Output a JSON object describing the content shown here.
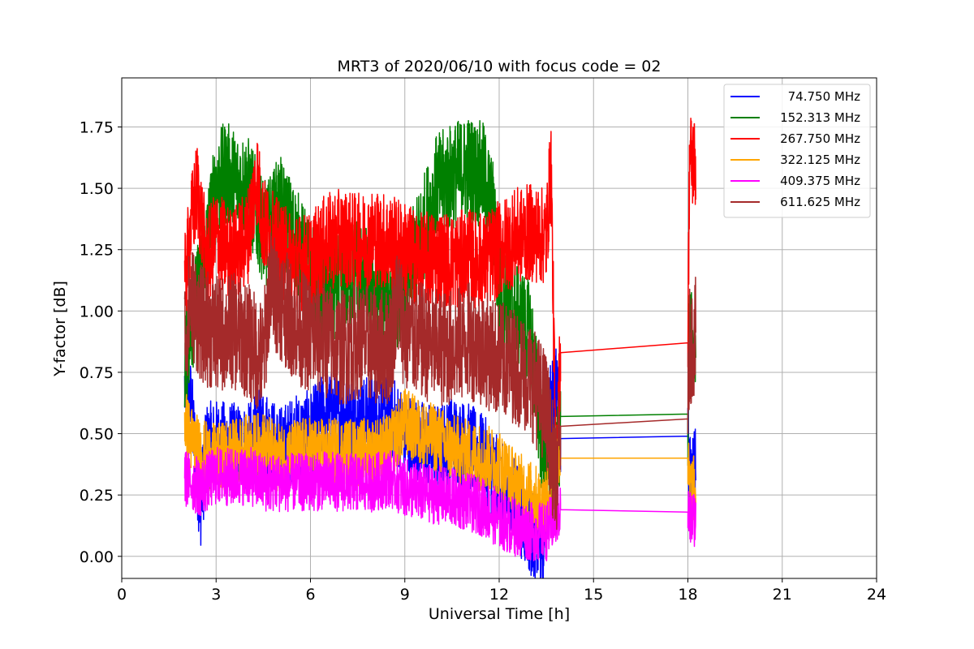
{
  "chart_data": {
    "type": "line",
    "title": "MRT3 of 2020/06/10 with focus code = 02",
    "xlabel": "Universal Time [h]",
    "ylabel": "Y-factor [dB]",
    "xlim": [
      0,
      24
    ],
    "ylim": [
      -0.09,
      1.95
    ],
    "xticks": [
      0,
      3,
      6,
      9,
      12,
      15,
      18,
      21,
      24
    ],
    "xtick_labels": [
      "0",
      "3",
      "6",
      "9",
      "12",
      "15",
      "18",
      "21",
      "24"
    ],
    "yticks": [
      0,
      0.25,
      0.5,
      0.75,
      1.0,
      1.25,
      1.5,
      1.75
    ],
    "ytick_labels": [
      "0.00",
      "0.25",
      "0.50",
      "0.75",
      "1.00",
      "1.25",
      "1.50",
      "1.75"
    ],
    "grid": true,
    "legend_position": "top-right",
    "series": [
      {
        "name": "74.750 MHz",
        "color": "#0000ff",
        "points": [
          [
            2.0,
            0.68
          ],
          [
            2.2,
            0.62
          ],
          [
            2.5,
            0.2
          ],
          [
            2.7,
            0.45
          ],
          [
            3.0,
            0.46
          ],
          [
            3.5,
            0.45
          ],
          [
            4.0,
            0.44
          ],
          [
            4.5,
            0.52
          ],
          [
            4.7,
            0.48
          ],
          [
            5.0,
            0.43
          ],
          [
            5.5,
            0.48
          ],
          [
            6.0,
            0.5
          ],
          [
            6.5,
            0.58
          ],
          [
            7.0,
            0.57
          ],
          [
            7.5,
            0.55
          ],
          [
            8.0,
            0.56
          ],
          [
            8.5,
            0.57
          ],
          [
            9.0,
            0.5
          ],
          [
            9.5,
            0.46
          ],
          [
            10.0,
            0.44
          ],
          [
            10.5,
            0.48
          ],
          [
            11.0,
            0.45
          ],
          [
            11.5,
            0.4
          ],
          [
            12.0,
            0.3
          ],
          [
            12.5,
            0.22
          ],
          [
            13.0,
            0.1
          ],
          [
            13.4,
            0.04
          ],
          [
            13.6,
            0.6
          ],
          [
            13.8,
            0.7
          ],
          [
            13.95,
            0.48
          ],
          [
            18.0,
            0.49
          ],
          [
            18.05,
            0.32
          ],
          [
            18.25,
            0.36
          ]
        ],
        "noise": 0.18
      },
      {
        "name": "152.313 MHz",
        "color": "#008000",
        "points": [
          [
            2.0,
            0.78
          ],
          [
            2.2,
            0.95
          ],
          [
            2.5,
            1.1
          ],
          [
            2.8,
            1.35
          ],
          [
            3.0,
            1.5
          ],
          [
            3.3,
            1.56
          ],
          [
            3.6,
            1.52
          ],
          [
            4.0,
            1.5
          ],
          [
            4.3,
            1.4
          ],
          [
            4.6,
            1.3
          ],
          [
            5.0,
            1.42
          ],
          [
            5.5,
            1.3
          ],
          [
            6.0,
            1.15
          ],
          [
            6.5,
            1.05
          ],
          [
            7.0,
            1.1
          ],
          [
            7.5,
            1.18
          ],
          [
            8.0,
            1.08
          ],
          [
            8.5,
            1.04
          ],
          [
            9.0,
            1.1
          ],
          [
            9.5,
            1.3
          ],
          [
            10.0,
            1.5
          ],
          [
            10.5,
            1.55
          ],
          [
            11.0,
            1.58
          ],
          [
            11.5,
            1.55
          ],
          [
            11.8,
            1.4
          ],
          [
            12.0,
            1.1
          ],
          [
            12.5,
            1.0
          ],
          [
            13.0,
            0.9
          ],
          [
            13.5,
            0.3
          ],
          [
            13.8,
            0.3
          ],
          [
            13.95,
            0.57
          ],
          [
            18.0,
            0.58
          ],
          [
            18.05,
            0.85
          ],
          [
            18.25,
            0.9
          ]
        ],
        "noise": 0.22
      },
      {
        "name": "267.750 MHz",
        "color": "#ff0000",
        "points": [
          [
            2.0,
            1.1
          ],
          [
            2.2,
            1.35
          ],
          [
            2.4,
            1.5
          ],
          [
            2.7,
            1.2
          ],
          [
            3.0,
            1.3
          ],
          [
            3.5,
            1.22
          ],
          [
            4.0,
            1.3
          ],
          [
            4.3,
            1.55
          ],
          [
            4.5,
            1.35
          ],
          [
            5.0,
            1.25
          ],
          [
            5.5,
            1.2
          ],
          [
            6.0,
            1.2
          ],
          [
            6.5,
            1.28
          ],
          [
            7.0,
            1.3
          ],
          [
            7.5,
            1.28
          ],
          [
            8.0,
            1.3
          ],
          [
            8.5,
            1.28
          ],
          [
            9.0,
            1.25
          ],
          [
            9.5,
            1.2
          ],
          [
            10.0,
            1.22
          ],
          [
            10.5,
            1.2
          ],
          [
            11.0,
            1.22
          ],
          [
            11.5,
            1.2
          ],
          [
            12.0,
            1.25
          ],
          [
            12.5,
            1.3
          ],
          [
            13.0,
            1.32
          ],
          [
            13.5,
            1.3
          ],
          [
            13.65,
            1.6
          ],
          [
            13.8,
            0.35
          ],
          [
            13.95,
            0.83
          ],
          [
            18.0,
            0.87
          ],
          [
            18.05,
            1.62
          ],
          [
            18.25,
            1.6
          ]
        ],
        "noise": 0.2
      },
      {
        "name": "322.125 MHz",
        "color": "#ffa500",
        "points": [
          [
            2.0,
            0.55
          ],
          [
            2.2,
            0.48
          ],
          [
            2.5,
            0.42
          ],
          [
            3.0,
            0.4
          ],
          [
            3.5,
            0.42
          ],
          [
            4.0,
            0.44
          ],
          [
            4.5,
            0.45
          ],
          [
            5.0,
            0.4
          ],
          [
            5.5,
            0.42
          ],
          [
            6.0,
            0.43
          ],
          [
            6.5,
            0.42
          ],
          [
            7.0,
            0.43
          ],
          [
            7.5,
            0.42
          ],
          [
            8.0,
            0.43
          ],
          [
            8.5,
            0.44
          ],
          [
            9.0,
            0.55
          ],
          [
            9.5,
            0.5
          ],
          [
            10.0,
            0.48
          ],
          [
            10.5,
            0.44
          ],
          [
            11.0,
            0.42
          ],
          [
            11.5,
            0.4
          ],
          [
            12.0,
            0.38
          ],
          [
            12.5,
            0.3
          ],
          [
            13.0,
            0.25
          ],
          [
            13.5,
            0.2
          ],
          [
            13.8,
            0.45
          ],
          [
            13.95,
            0.4
          ],
          [
            18.0,
            0.4
          ],
          [
            18.05,
            0.28
          ],
          [
            18.25,
            0.27
          ]
        ],
        "noise": 0.14
      },
      {
        "name": "409.375 MHz",
        "color": "#ff00ff",
        "points": [
          [
            2.0,
            0.32
          ],
          [
            2.5,
            0.28
          ],
          [
            3.0,
            0.33
          ],
          [
            3.5,
            0.32
          ],
          [
            4.0,
            0.33
          ],
          [
            4.5,
            0.3
          ],
          [
            5.0,
            0.3
          ],
          [
            5.5,
            0.3
          ],
          [
            6.0,
            0.3
          ],
          [
            6.5,
            0.31
          ],
          [
            7.0,
            0.3
          ],
          [
            7.5,
            0.3
          ],
          [
            8.0,
            0.3
          ],
          [
            8.5,
            0.32
          ],
          [
            9.0,
            0.28
          ],
          [
            9.5,
            0.26
          ],
          [
            10.0,
            0.25
          ],
          [
            10.5,
            0.24
          ],
          [
            11.0,
            0.22
          ],
          [
            11.5,
            0.2
          ],
          [
            12.0,
            0.15
          ],
          [
            12.5,
            0.12
          ],
          [
            13.0,
            0.1
          ],
          [
            13.5,
            0.1
          ],
          [
            13.95,
            0.19
          ],
          [
            18.0,
            0.18
          ],
          [
            18.05,
            0.15
          ],
          [
            18.25,
            0.16
          ]
        ],
        "noise": 0.12
      },
      {
        "name": "611.625 MHz",
        "color": "#a52a2a",
        "points": [
          [
            2.0,
            0.9
          ],
          [
            2.2,
            1.05
          ],
          [
            2.5,
            0.95
          ],
          [
            3.0,
            0.9
          ],
          [
            3.5,
            0.92
          ],
          [
            4.0,
            0.88
          ],
          [
            4.5,
            0.8
          ],
          [
            4.7,
            1.1
          ],
          [
            5.0,
            1.05
          ],
          [
            5.5,
            0.95
          ],
          [
            6.0,
            0.9
          ],
          [
            6.5,
            0.88
          ],
          [
            7.0,
            0.85
          ],
          [
            7.5,
            0.88
          ],
          [
            8.0,
            0.86
          ],
          [
            8.5,
            0.85
          ],
          [
            8.8,
            1.05
          ],
          [
            9.0,
            0.9
          ],
          [
            9.5,
            0.88
          ],
          [
            10.0,
            0.85
          ],
          [
            10.5,
            0.85
          ],
          [
            11.0,
            0.88
          ],
          [
            11.5,
            0.85
          ],
          [
            12.0,
            0.8
          ],
          [
            12.5,
            0.78
          ],
          [
            13.0,
            0.72
          ],
          [
            13.5,
            0.6
          ],
          [
            13.8,
            0.3
          ],
          [
            13.95,
            0.53
          ],
          [
            18.0,
            0.56
          ],
          [
            18.05,
            0.85
          ],
          [
            18.25,
            0.9
          ]
        ],
        "noise": 0.24
      }
    ]
  }
}
